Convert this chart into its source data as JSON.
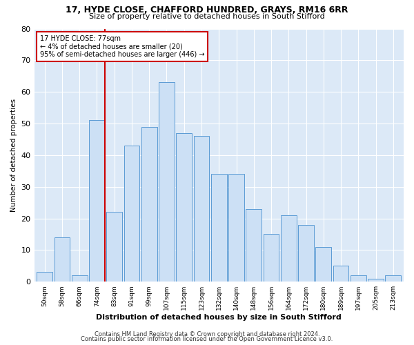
{
  "title1": "17, HYDE CLOSE, CHAFFORD HUNDRED, GRAYS, RM16 6RR",
  "title2": "Size of property relative to detached houses in South Stifford",
  "xlabel": "Distribution of detached houses by size in South Stifford",
  "ylabel": "Number of detached properties",
  "footer1": "Contains HM Land Registry data © Crown copyright and database right 2024.",
  "footer2": "Contains public sector information licensed under the Open Government Licence v3.0.",
  "annotation_line1": "17 HYDE CLOSE: 77sqm",
  "annotation_line2": "← 4% of detached houses are smaller (20)",
  "annotation_line3": "95% of semi-detached houses are larger (446) →",
  "bar_labels": [
    "50sqm",
    "58sqm",
    "66sqm",
    "74sqm",
    "83sqm",
    "91sqm",
    "99sqm",
    "107sqm",
    "115sqm",
    "123sqm",
    "132sqm",
    "140sqm",
    "148sqm",
    "156sqm",
    "164sqm",
    "172sqm",
    "180sqm",
    "189sqm",
    "197sqm",
    "205sqm",
    "213sqm"
  ],
  "bar_values": [
    3,
    14,
    2,
    51,
    22,
    43,
    49,
    63,
    47,
    46,
    34,
    34,
    23,
    15,
    21,
    18,
    11,
    5,
    2,
    1,
    2
  ],
  "bar_face_color": "#cce0f5",
  "bar_edge_color": "#5b9bd5",
  "vline_color": "#cc0000",
  "vline_x_index": 3,
  "annotation_box_color": "#cc0000",
  "background_color": "#dce9f7",
  "ylim": [
    0,
    80
  ],
  "yticks": [
    0,
    10,
    20,
    30,
    40,
    50,
    60,
    70,
    80
  ]
}
